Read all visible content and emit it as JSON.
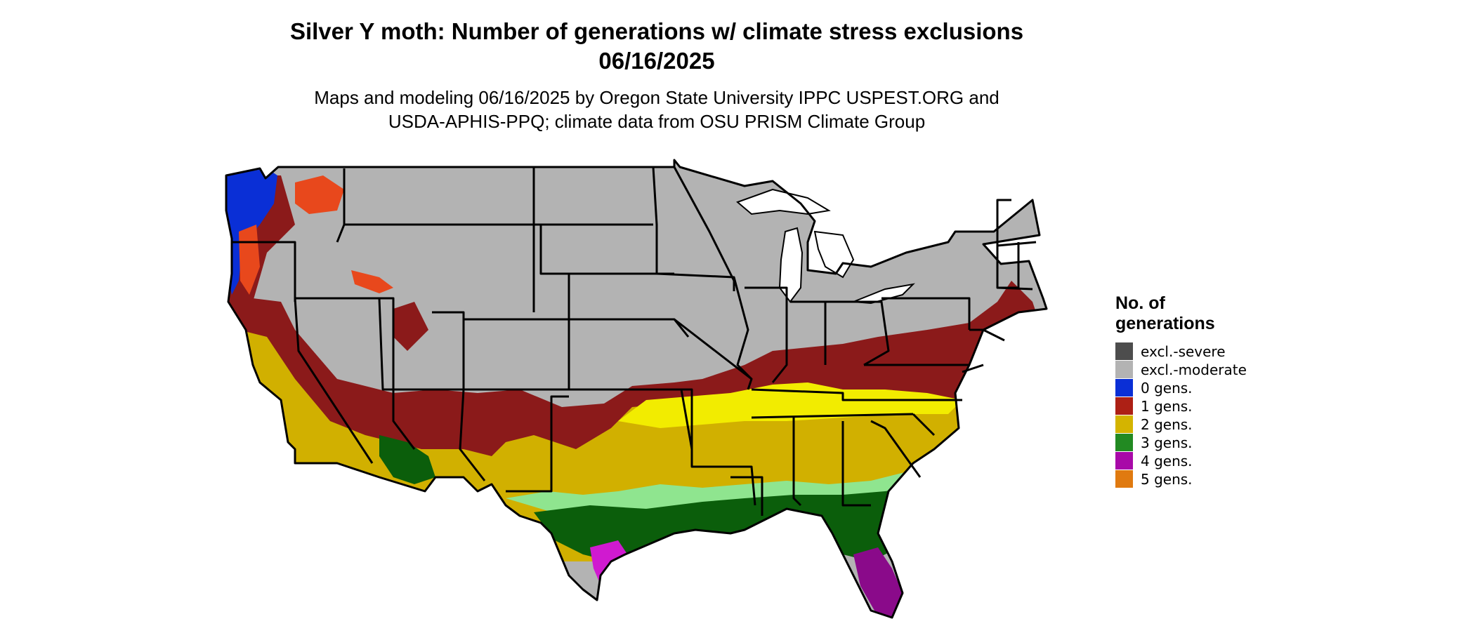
{
  "title": {
    "line1": "Silver Y moth: Number of generations w/ climate stress exclusions",
    "line2": "06/16/2025"
  },
  "subtitle": {
    "line1": "Maps and modeling 06/16/2025 by Oregon State University IPPC USPEST.ORG and",
    "line2": "USDA-APHIS-PPQ; climate data from OSU PRISM Climate Group"
  },
  "legend": {
    "title_line1": "No. of",
    "title_line2": "generations",
    "items": [
      {
        "label": "excl.-severe",
        "color": "#4d4d4d"
      },
      {
        "label": "excl.-moderate",
        "color": "#b3b3b3"
      },
      {
        "label": "0 gens.",
        "color": "#0a2fd6"
      },
      {
        "label": "1 gens.",
        "color": "#ad2015"
      },
      {
        "label": "2 gens.",
        "color": "#d4b400"
      },
      {
        "label": "3 gens.",
        "color": "#228a22"
      },
      {
        "label": "4 gens.",
        "color": "#a80aa8"
      },
      {
        "label": "5 gens.",
        "color": "#e07a10"
      }
    ]
  },
  "map_colors": {
    "excl_moderate": "#b3b3b3",
    "gens_0": "#0a2fd6",
    "gens_1_dark": "#8b1a1a",
    "gens_1_bright": "#e8481c",
    "gens_2": "#d1b000",
    "gens_2_bright": "#f2ec00",
    "gens_3": "#0b5e0b",
    "gens_3_light": "#8fe58f",
    "gens_4": "#d01ad0",
    "gens_4_dark": "#8a0a8a",
    "gens_5": "#e07a10"
  }
}
